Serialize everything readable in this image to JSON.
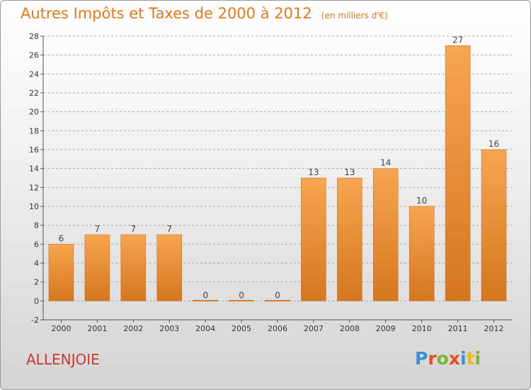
{
  "header": {
    "title": "Autres Impôts et Taxes de 2000 à 2012",
    "unit": "(en milliers d'€)"
  },
  "footer": {
    "commune": "ALLENJOIE",
    "logo_text": "Proxiti",
    "logo_letters": [
      {
        "ch": "P",
        "color": "#3a8fd9"
      },
      {
        "ch": "r",
        "color": "#e8501b"
      },
      {
        "ch": "o",
        "color": "#7cb82f"
      },
      {
        "ch": "x",
        "color": "#e8501b"
      },
      {
        "ch": "i",
        "color": "#3a8fd9"
      },
      {
        "ch": "t",
        "color": "#f2b91c"
      },
      {
        "ch": "i",
        "color": "#7cb82f"
      }
    ]
  },
  "colors": {
    "bar_light": "#f7a550",
    "bar_dark": "#d4771f",
    "bar_edge": "#c26a1c",
    "title": "#e8771b",
    "commune": "#c73a33",
    "grid": "#aaaaaa",
    "axis": "#555555"
  },
  "chart_data": {
    "type": "bar",
    "title": "Autres Impôts et Taxes de 2000 à 2012",
    "subtitle": "(en milliers d'€)",
    "xlabel": "",
    "ylabel": "",
    "categories": [
      "2000",
      "2001",
      "2002",
      "2003",
      "2004",
      "2005",
      "2006",
      "2007",
      "2008",
      "2009",
      "2010",
      "2011",
      "2012"
    ],
    "values": [
      6,
      7,
      7,
      7,
      0,
      0,
      0,
      13,
      13,
      14,
      10,
      27,
      16
    ],
    "data_labels": [
      "6",
      "7",
      "7",
      "7",
      "0",
      "0",
      "0",
      "13",
      "13",
      "14",
      "10",
      "27",
      "16"
    ],
    "ylim": [
      -2,
      28
    ],
    "yticks": [
      -2,
      0,
      2,
      4,
      6,
      8,
      10,
      12,
      14,
      16,
      18,
      20,
      22,
      24,
      26,
      28
    ],
    "grid": "horizontal dashed",
    "legend": "none"
  }
}
